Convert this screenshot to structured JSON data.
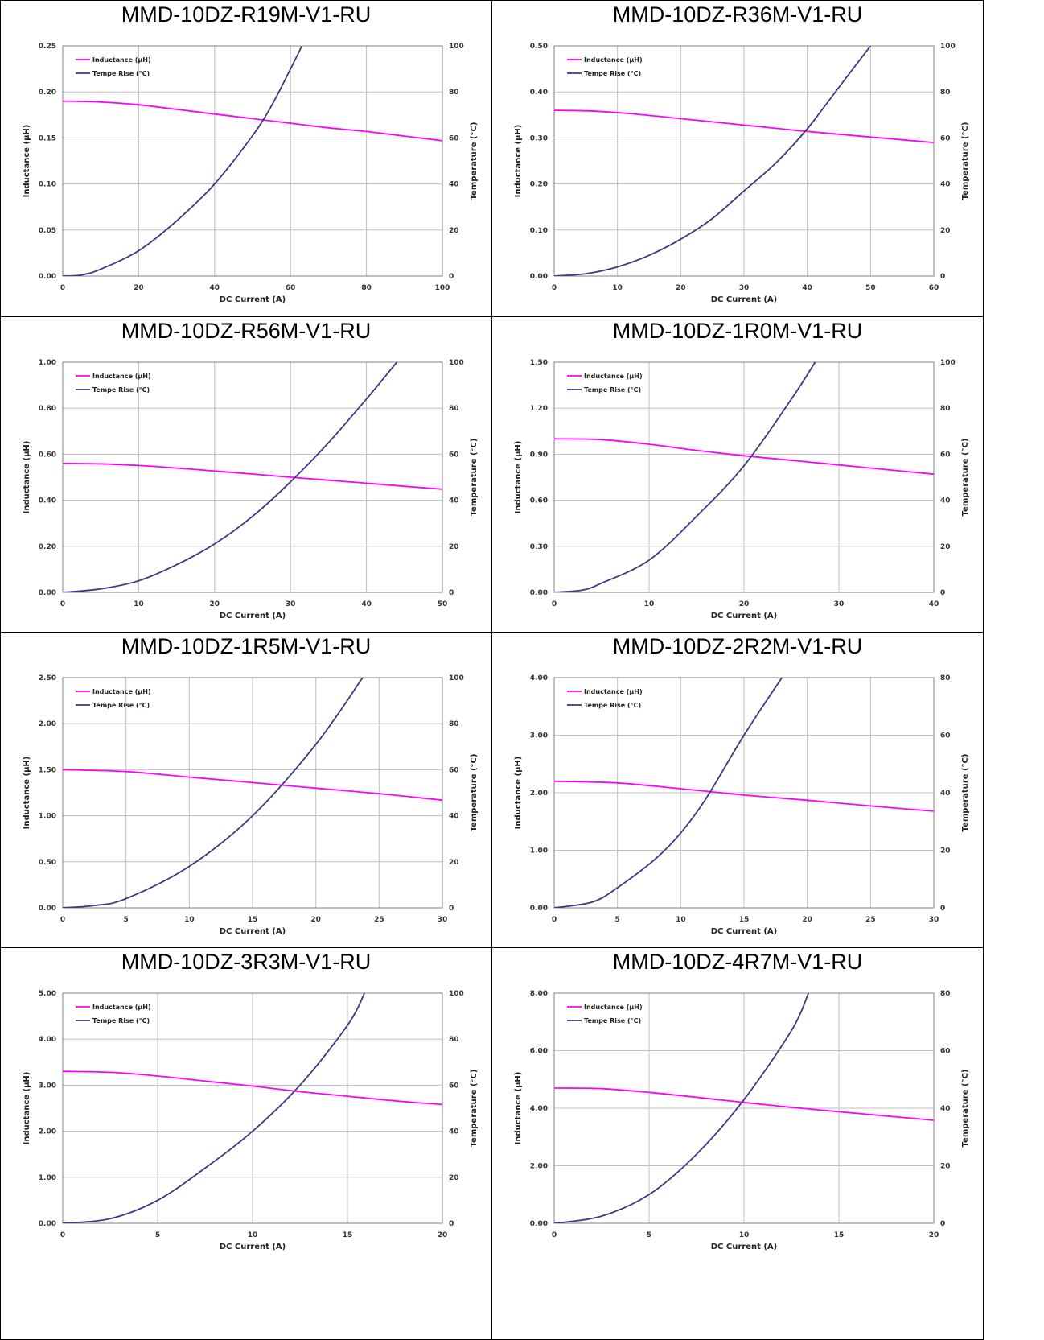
{
  "colors": {
    "inductance": "#ff00ff",
    "temperature": "#3b3a82",
    "grid": "#bfbfbf",
    "axis": "#808080"
  },
  "charts": [
    {
      "title": "MMD-10DZ-R19M-V1-RU",
      "xlabel": "DC Current (A)",
      "ylabel_left": "Inductance (µH)",
      "ylabel_right": "Temperature (°C)",
      "legend": [
        "Inductance (µH)",
        "Tempe Rise (°C)"
      ],
      "xticks": [
        "0",
        "20",
        "40",
        "60",
        "80",
        "100"
      ],
      "yticks_left": [
        "0.00",
        "0.05",
        "0.10",
        "0.15",
        "0.20",
        "0.25"
      ],
      "yticks_right": [
        "0",
        "20",
        "40",
        "60",
        "80",
        "100"
      ]
    },
    {
      "title": "MMD-10DZ-R36M-V1-RU",
      "xlabel": "DC Current (A)",
      "ylabel_left": "Inductance (µH)",
      "ylabel_right": "Temperature (°C)",
      "legend": [
        "Inductance (µH)",
        "Tempe Rise (°C)"
      ],
      "xticks": [
        "0",
        "10",
        "20",
        "30",
        "40",
        "50",
        "60"
      ],
      "yticks_left": [
        "0.00",
        "0.10",
        "0.20",
        "0.30",
        "0.40",
        "0.50"
      ],
      "yticks_right": [
        "0",
        "20",
        "40",
        "60",
        "80",
        "100"
      ]
    },
    {
      "title": "MMD-10DZ-R56M-V1-RU",
      "xlabel": "DC Current (A)",
      "ylabel_left": "Inductance (µH)",
      "ylabel_right": "Temperature (°C)",
      "legend": [
        "Inductance (µH)",
        "Tempe Rise (°C)"
      ],
      "xticks": [
        "0",
        "10",
        "20",
        "30",
        "40",
        "50"
      ],
      "yticks_left": [
        "0.00",
        "0.20",
        "0.40",
        "0.60",
        "0.80",
        "1.00"
      ],
      "yticks_right": [
        "0",
        "20",
        "40",
        "60",
        "80",
        "100"
      ]
    },
    {
      "title": "MMD-10DZ-1R0M-V1-RU",
      "xlabel": "DC Current (A)",
      "ylabel_left": "Inductance (µH)",
      "ylabel_right": "Temperature (°C)",
      "legend": [
        "Inductance (µH)",
        "Tempe Rise (°C)"
      ],
      "xticks": [
        "0",
        "10",
        "20",
        "30",
        "40"
      ],
      "yticks_left": [
        "0.00",
        "0.30",
        "0.60",
        "0.90",
        "1.20",
        "1.50"
      ],
      "yticks_right": [
        "0",
        "20",
        "40",
        "60",
        "80",
        "100"
      ]
    },
    {
      "title": "MMD-10DZ-1R5M-V1-RU",
      "xlabel": "DC Current (A)",
      "ylabel_left": "Inductance (µH)",
      "ylabel_right": "Temperature (°C)",
      "legend": [
        "Inductance (µH)",
        "Tempe Rise (°C)"
      ],
      "xticks": [
        "0",
        "5",
        "10",
        "15",
        "20",
        "25",
        "30"
      ],
      "yticks_left": [
        "0.00",
        "0.50",
        "1.00",
        "1.50",
        "2.00",
        "2.50"
      ],
      "yticks_right": [
        "0",
        "20",
        "40",
        "60",
        "80",
        "100"
      ]
    },
    {
      "title": "MMD-10DZ-2R2M-V1-RU",
      "xlabel": "DC Current (A)",
      "ylabel_left": "Inductance (µH)",
      "ylabel_right": "Temperature (°C)",
      "legend": [
        "Inductance (µH)",
        "Tempe Rise (°C)"
      ],
      "xticks": [
        "0",
        "5",
        "10",
        "15",
        "20",
        "25",
        "30"
      ],
      "yticks_left": [
        "0.00",
        "1.00",
        "2.00",
        "3.00",
        "4.00"
      ],
      "yticks_right": [
        "0",
        "20",
        "40",
        "60",
        "80"
      ]
    },
    {
      "title": "MMD-10DZ-3R3M-V1-RU",
      "xlabel": "DC Current (A)",
      "ylabel_left": "Inductance (µH)",
      "ylabel_right": "Temperature (°C)",
      "legend": [
        "Inductance (µH)",
        "Tempe Rise (°C)"
      ],
      "xticks": [
        "0",
        "5",
        "10",
        "15",
        "20"
      ],
      "yticks_left": [
        "0.00",
        "1.00",
        "2.00",
        "3.00",
        "4.00",
        "5.00"
      ],
      "yticks_right": [
        "0",
        "20",
        "40",
        "60",
        "80",
        "100"
      ]
    },
    {
      "title": "MMD-10DZ-4R7M-V1-RU",
      "xlabel": "DC Current (A)",
      "ylabel_left": "Inductance (µH)",
      "ylabel_right": "Temperature (°C)",
      "legend": [
        "Inductance (µH)",
        "Tempe Rise (°C)"
      ],
      "xticks": [
        "0",
        "5",
        "10",
        "15",
        "20"
      ],
      "yticks_left": [
        "0.00",
        "2.00",
        "4.00",
        "6.00",
        "8.00"
      ],
      "yticks_right": [
        "0",
        "20",
        "40",
        "60",
        "80"
      ]
    }
  ],
  "chart_data": [
    {
      "type": "line",
      "title": "MMD-10DZ-R19M-V1-RU",
      "xlabel": "DC Current (A)",
      "ylabel": "Inductance (µH)",
      "ylabel_right": "Temperature (°C)",
      "xlim": [
        0,
        100
      ],
      "ylim": [
        0,
        0.25
      ],
      "ylim_right": [
        0,
        100
      ],
      "grid": true,
      "legend": "top-left",
      "series": [
        {
          "name": "Inductance (µH)",
          "axis": "left",
          "color": "#ff00ff",
          "x": [
            0,
            10,
            20,
            30,
            40,
            50,
            60,
            70,
            80,
            90,
            100
          ],
          "y": [
            0.19,
            0.189,
            0.186,
            0.181,
            0.176,
            0.171,
            0.166,
            0.161,
            0.157,
            0.152,
            0.147
          ]
        },
        {
          "name": "Tempe Rise (°C)",
          "axis": "right",
          "color": "#3b3a82",
          "x": [
            0,
            5,
            10,
            20,
            30,
            40,
            50,
            55,
            60,
            63
          ],
          "y": [
            0,
            0.5,
            3,
            11,
            24,
            40,
            61,
            74,
            90,
            100
          ]
        }
      ]
    },
    {
      "type": "line",
      "title": "MMD-10DZ-R36M-V1-RU",
      "xlabel": "DC Current (A)",
      "ylabel": "Inductance (µH)",
      "ylabel_right": "Temperature (°C)",
      "xlim": [
        0,
        60
      ],
      "ylim": [
        0,
        0.5
      ],
      "ylim_right": [
        0,
        100
      ],
      "grid": true,
      "legend": "top-left",
      "series": [
        {
          "name": "Inductance (µH)",
          "axis": "left",
          "color": "#ff00ff",
          "x": [
            0,
            5,
            10,
            15,
            20,
            25,
            30,
            35,
            40,
            45,
            50,
            55,
            60
          ],
          "y": [
            0.36,
            0.359,
            0.355,
            0.349,
            0.342,
            0.335,
            0.328,
            0.321,
            0.314,
            0.308,
            0.302,
            0.296,
            0.29
          ]
        },
        {
          "name": "Tempe Rise (°C)",
          "axis": "right",
          "color": "#3b3a82",
          "x": [
            0,
            5,
            10,
            15,
            20,
            25,
            30,
            35,
            40,
            45,
            50
          ],
          "y": [
            0,
            1,
            4,
            9,
            16,
            25,
            37,
            49,
            64,
            82,
            100
          ]
        }
      ]
    },
    {
      "type": "line",
      "title": "MMD-10DZ-R56M-V1-RU",
      "xlabel": "DC Current (A)",
      "ylabel": "Inductance (µH)",
      "ylabel_right": "Temperature (°C)",
      "xlim": [
        0,
        50
      ],
      "ylim": [
        0,
        1
      ],
      "ylim_right": [
        0,
        100
      ],
      "grid": true,
      "legend": "top-left",
      "series": [
        {
          "name": "Inductance (µH)",
          "axis": "left",
          "color": "#ff00ff",
          "x": [
            0,
            5,
            10,
            15,
            20,
            25,
            30,
            35,
            40,
            45,
            50
          ],
          "y": [
            0.56,
            0.558,
            0.551,
            0.54,
            0.527,
            0.514,
            0.5,
            0.487,
            0.474,
            0.461,
            0.448
          ]
        },
        {
          "name": "Tempe Rise (°C)",
          "axis": "right",
          "color": "#3b3a82",
          "x": [
            0,
            5,
            10,
            15,
            20,
            25,
            30,
            35,
            40,
            44
          ],
          "y": [
            0,
            1.5,
            5,
            12,
            21,
            33,
            48,
            65,
            84,
            100
          ]
        }
      ]
    },
    {
      "type": "line",
      "title": "MMD-10DZ-1R0M-V1-RU",
      "xlabel": "DC Current (A)",
      "ylabel": "Inductance (µH)",
      "ylabel_right": "Temperature (°C)",
      "xlim": [
        0,
        40
      ],
      "ylim": [
        0,
        1.5
      ],
      "ylim_right": [
        0,
        100
      ],
      "grid": true,
      "legend": "top-left",
      "series": [
        {
          "name": "Inductance (µH)",
          "axis": "left",
          "color": "#ff00ff",
          "x": [
            0,
            5,
            10,
            15,
            20,
            25,
            30,
            35,
            40
          ],
          "y": [
            1.0,
            0.995,
            0.965,
            0.925,
            0.89,
            0.86,
            0.83,
            0.8,
            0.77
          ]
        },
        {
          "name": "Tempe Rise (°C)",
          "axis": "right",
          "color": "#3b3a82",
          "x": [
            0,
            3,
            5,
            10,
            15,
            20,
            25,
            27.5
          ],
          "y": [
            0,
            1,
            4,
            14,
            33,
            55,
            84,
            100
          ]
        }
      ]
    },
    {
      "type": "line",
      "title": "MMD-10DZ-1R5M-V1-RU",
      "xlabel": "DC Current (A)",
      "ylabel": "Inductance (µH)",
      "ylabel_right": "Temperature (°C)",
      "xlim": [
        0,
        30
      ],
      "ylim": [
        0,
        2.5
      ],
      "ylim_right": [
        0,
        100
      ],
      "grid": true,
      "legend": "top-left",
      "series": [
        {
          "name": "Inductance (µH)",
          "axis": "left",
          "color": "#ff00ff",
          "x": [
            0,
            5,
            10,
            15,
            20,
            25,
            30
          ],
          "y": [
            1.5,
            1.48,
            1.42,
            1.36,
            1.3,
            1.24,
            1.17
          ]
        },
        {
          "name": "Tempe Rise (°C)",
          "axis": "right",
          "color": "#3b3a82",
          "x": [
            0,
            2.5,
            5,
            10,
            15,
            20,
            23.7
          ],
          "y": [
            0,
            1,
            4,
            18,
            40,
            71,
            100
          ]
        }
      ]
    },
    {
      "type": "line",
      "title": "MMD-10DZ-2R2M-V1-RU",
      "xlabel": "DC Current (A)",
      "ylabel": "Inductance (µH)",
      "ylabel_right": "Temperature (°C)",
      "xlim": [
        0,
        30
      ],
      "ylim": [
        0,
        4
      ],
      "ylim_right": [
        0,
        80
      ],
      "grid": true,
      "legend": "top-left",
      "series": [
        {
          "name": "Inductance (µH)",
          "axis": "left",
          "color": "#ff00ff",
          "x": [
            0,
            5,
            10,
            15,
            20,
            25,
            30
          ],
          "y": [
            2.2,
            2.17,
            2.07,
            1.96,
            1.87,
            1.77,
            1.68
          ]
        },
        {
          "name": "Tempe Rise (°C)",
          "axis": "right",
          "color": "#3b3a82",
          "x": [
            0,
            3,
            5,
            8,
            10,
            12,
            15,
            18
          ],
          "y": [
            0,
            2,
            7,
            17,
            26,
            38,
            60,
            80
          ]
        }
      ]
    },
    {
      "type": "line",
      "title": "MMD-10DZ-3R3M-V1-RU",
      "xlabel": "DC Current (A)",
      "ylabel": "Inductance (µH)",
      "ylabel_right": "Temperature (°C)",
      "xlim": [
        0,
        20
      ],
      "ylim": [
        0,
        5
      ],
      "ylim_right": [
        0,
        100
      ],
      "grid": true,
      "legend": "top-left",
      "series": [
        {
          "name": "Inductance (µH)",
          "axis": "left",
          "color": "#ff00ff",
          "x": [
            0,
            2.5,
            5,
            7.5,
            10,
            12.5,
            15,
            17.5,
            20
          ],
          "y": [
            3.3,
            3.28,
            3.2,
            3.09,
            2.98,
            2.86,
            2.76,
            2.66,
            2.58
          ]
        },
        {
          "name": "Tempe Rise (°C)",
          "axis": "right",
          "color": "#3b3a82",
          "x": [
            0,
            2.5,
            5,
            7.5,
            10,
            12.5,
            15,
            15.9
          ],
          "y": [
            0,
            2,
            10,
            24,
            40,
            60,
            86,
            100
          ]
        }
      ]
    },
    {
      "type": "line",
      "title": "MMD-10DZ-4R7M-V1-RU",
      "xlabel": "DC Current (A)",
      "ylabel": "Inductance (µH)",
      "ylabel_right": "Temperature (°C)",
      "xlim": [
        0,
        20
      ],
      "ylim": [
        0,
        8
      ],
      "ylim_right": [
        0,
        80
      ],
      "grid": true,
      "legend": "top-left",
      "series": [
        {
          "name": "Inductance (µH)",
          "axis": "left",
          "color": "#ff00ff",
          "x": [
            0,
            2.5,
            5,
            7.5,
            10,
            12.5,
            15,
            17.5,
            20
          ],
          "y": [
            4.7,
            4.68,
            4.55,
            4.38,
            4.2,
            4.03,
            3.88,
            3.73,
            3.58
          ]
        },
        {
          "name": "Tempe Rise (°C)",
          "axis": "right",
          "color": "#3b3a82",
          "x": [
            0,
            2.5,
            5,
            7.5,
            10,
            12.5,
            13.4
          ],
          "y": [
            0,
            2.5,
            10,
            24,
            43,
            67,
            80
          ]
        }
      ]
    }
  ]
}
